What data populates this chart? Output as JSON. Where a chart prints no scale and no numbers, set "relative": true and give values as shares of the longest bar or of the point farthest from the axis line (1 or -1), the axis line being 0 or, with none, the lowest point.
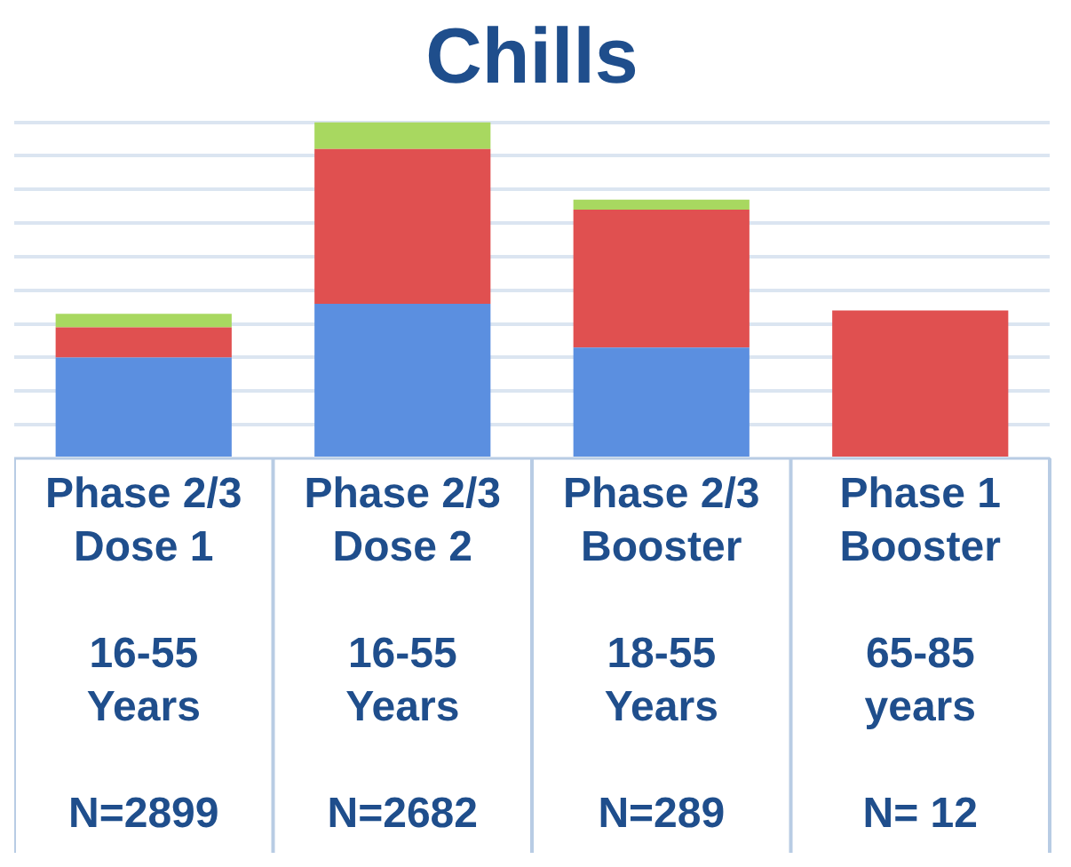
{
  "chart_data": {
    "type": "bar",
    "title": "Chills",
    "stacked": true,
    "relative": true,
    "grid": "y",
    "legend": false,
    "categories": [
      "Phase 2/3\nDose 1\n\n16-55\nYears\n\nN=2899",
      "Phase 2/3\nDose 2\n\n16-55\nYears\n\nN=2682",
      "Phase 2/3\nBooster\n\n18-55\nYears\n\nN=289",
      "Phase 1\nBooster\n\n65-85\nyears\n\nN= 12"
    ],
    "series": [
      {
        "color": "#5b8fe0",
        "values": [
          0.3,
          0.46,
          0.33,
          0
        ]
      },
      {
        "color": "#e05050",
        "values": [
          0.09,
          0.46,
          0.41,
          0.44
        ]
      },
      {
        "color": "#a8d860",
        "values": [
          0.04,
          0.08,
          0.03,
          0
        ]
      }
    ]
  }
}
